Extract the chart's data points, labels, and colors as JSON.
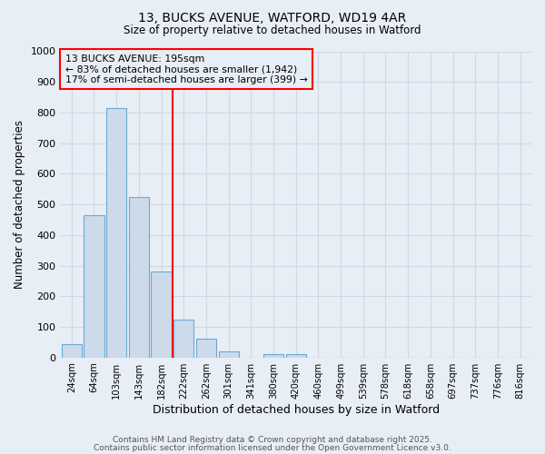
{
  "title1": "13, BUCKS AVENUE, WATFORD, WD19 4AR",
  "title2": "Size of property relative to detached houses in Watford",
  "xlabel": "Distribution of detached houses by size in Watford",
  "ylabel": "Number of detached properties",
  "categories": [
    "24sqm",
    "64sqm",
    "103sqm",
    "143sqm",
    "182sqm",
    "222sqm",
    "262sqm",
    "301sqm",
    "341sqm",
    "380sqm",
    "420sqm",
    "460sqm",
    "499sqm",
    "539sqm",
    "578sqm",
    "618sqm",
    "658sqm",
    "697sqm",
    "737sqm",
    "776sqm",
    "816sqm"
  ],
  "values": [
    45,
    465,
    815,
    525,
    280,
    125,
    60,
    20,
    0,
    10,
    10,
    0,
    0,
    0,
    0,
    0,
    0,
    0,
    0,
    0,
    0
  ],
  "bar_color": "#cddaea",
  "bar_edge_color": "#6aaad4",
  "background_color": "#e8eef5",
  "grid_color": "#d0d8e4",
  "red_line_x": 4.5,
  "ylim": [
    0,
    1000
  ],
  "yticks": [
    0,
    100,
    200,
    300,
    400,
    500,
    600,
    700,
    800,
    900,
    1000
  ],
  "annotation_title": "13 BUCKS AVENUE: 195sqm",
  "annotation_line1": "← 83% of detached houses are smaller (1,942)",
  "annotation_line2": "17% of semi-detached houses are larger (399) →",
  "footer1": "Contains HM Land Registry data © Crown copyright and database right 2025.",
  "footer2": "Contains public sector information licensed under the Open Government Licence v3.0."
}
